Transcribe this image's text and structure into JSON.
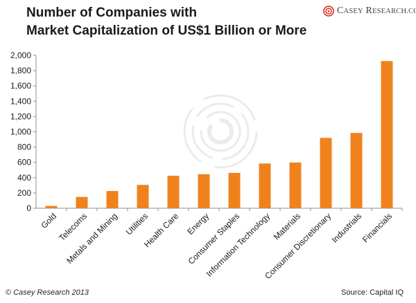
{
  "header": {
    "title_line1": "Number of Companies with",
    "title_line2": "Market Capitalization of US$1 Billion or More",
    "logo_name": "Casey Research",
    "logo_word1": "C",
    "logo_word1_rest": "ASEY",
    "logo_word2": "R",
    "logo_word2_rest": "ESEARCH",
    "logo_suffix": ".COM"
  },
  "footer": {
    "copyright": "© Casey Research 2013",
    "source": "Source: Capital IQ"
  },
  "colors": {
    "bar": "#F0821E",
    "axis": "#8c8c8c",
    "gridline": "#d9d9d9",
    "text": "#1a1a1a"
  },
  "chart_data": {
    "type": "bar",
    "title": "Number of Companies with Market Capitalization of US$1 Billion or More",
    "xlabel": "",
    "ylabel": "",
    "ylim": [
      0,
      2000
    ],
    "ytick_step": 200,
    "grid": false,
    "categories": [
      "Gold",
      "Telecoms",
      "Metals and Mining",
      "Utilities",
      "Health Care",
      "Energy",
      "Consumer Staples",
      "Information Technology",
      "Materials",
      "Consumer Discretionary",
      "Industrials",
      "Financials"
    ],
    "values": [
      30,
      148,
      225,
      305,
      425,
      445,
      462,
      585,
      598,
      920,
      985,
      1925
    ]
  }
}
